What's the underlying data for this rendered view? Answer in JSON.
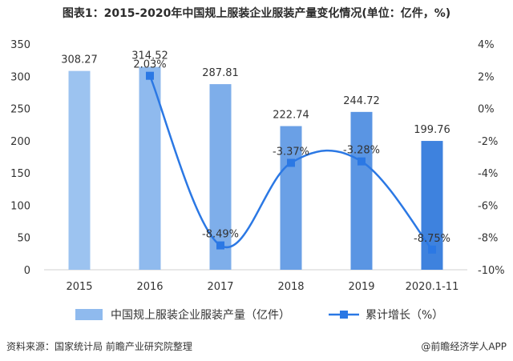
{
  "title": "图表1：2015-2020年中国规上服装企业服装产量变化情况(单位：亿件，%)",
  "source": "资料来源：国家统计局 前瞻产业研究院整理",
  "brand": "@前瞻经济学人APP",
  "chart_data": {
    "type": "bar+line",
    "title": "图表1：2015-2020年中国规上服装企业服装产量变化情况(单位：亿件，%)",
    "categories": [
      "2015",
      "2016",
      "2017",
      "2018",
      "2019",
      "2020.1-11"
    ],
    "series": [
      {
        "name": "中国规上服装企业服装产量（亿件）",
        "type": "bar",
        "axis": "left",
        "values": [
          308.27,
          314.52,
          287.81,
          222.74,
          244.72,
          199.76
        ],
        "value_labels": [
          "308.27",
          "314.52",
          "287.81",
          "222.74",
          "244.72",
          "199.76"
        ],
        "colors": [
          "#9cc3f0",
          "#8fbaee",
          "#7eaeea",
          "#6aa0e6",
          "#5a95e3",
          "#3e82de"
        ]
      },
      {
        "name": "累计增长（%）",
        "type": "line",
        "axis": "right",
        "values": [
          null,
          2.03,
          -8.49,
          -3.37,
          -3.28,
          -8.75
        ],
        "value_labels": [
          "",
          "2.03%",
          "-8.49%",
          "-3.37%",
          "-3.28%",
          "-8.75%"
        ],
        "color": "#2b78e4"
      }
    ],
    "y_left": {
      "min": 0,
      "max": 350,
      "ticks": [
        "0",
        "50",
        "100",
        "150",
        "200",
        "250",
        "300",
        "350"
      ]
    },
    "y_right": {
      "min": -10,
      "max": 4,
      "ticks": [
        "-10%",
        "-8%",
        "-6%",
        "-4%",
        "-2%",
        "0%",
        "2%",
        "4%"
      ]
    },
    "grid": false,
    "legend_position": "bottom"
  }
}
